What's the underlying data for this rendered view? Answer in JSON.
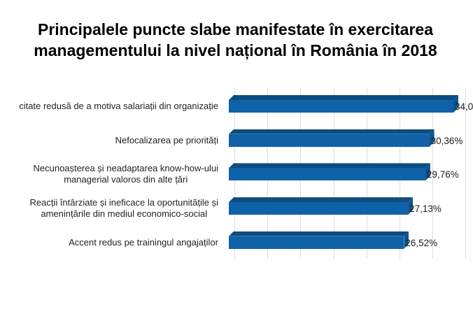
{
  "title": {
    "lines": [
      "Principalele puncte slabe manifestate în exercitarea",
      "managementului la nivel național în România în 2018"
    ]
  },
  "chart_data": {
    "type": "bar",
    "orientation": "horizontal",
    "style": "3d",
    "grid": true,
    "legend": false,
    "title": "Principalele puncte slabe manifestate în exercitarea managementului la nivel național în România în 2018",
    "categories": [
      "citate redusă de a motiva salariații din organizație",
      "Nefocalizarea pe priorități",
      "Necunoașterea și neadaptarea know-how-ului managerial valoros din alte țări",
      "Reacții întârziate și ineficace la oportunitățile și amenințările din mediul economico-social",
      "Accent redus pe trainingul angajaților"
    ],
    "label_lines": [
      [
        "citate redusă de a motiva salariații din organizație"
      ],
      [
        "Nefocalizarea pe priorități"
      ],
      [
        "Necunoașterea și neadaptarea know-how-ului",
        "managerial valoros din alte țări"
      ],
      [
        "Reacții întârziate și ineficace la oportunitățile și",
        "amenințările din mediul economico-social"
      ],
      [
        "Accent redus pe trainingul angajaților"
      ]
    ],
    "values": [
      34.0,
      30.36,
      29.76,
      27.13,
      26.52
    ],
    "value_labels": [
      "34,0",
      "30,36%",
      "29,76%",
      "27,13%",
      "26,52%"
    ],
    "xlim": [
      0,
      35
    ],
    "gridline_step_pct": 5,
    "xlabel": "",
    "ylabel": "",
    "colors": {
      "bar_front": "#1062a8",
      "bar_top": "#0c4c81",
      "bar_end": "#0e548c",
      "gridline": "#d9dde3",
      "title_text": "#000000",
      "label_text": "#222222",
      "value_text": "#1a1a1a",
      "background": "#ffffff"
    }
  }
}
